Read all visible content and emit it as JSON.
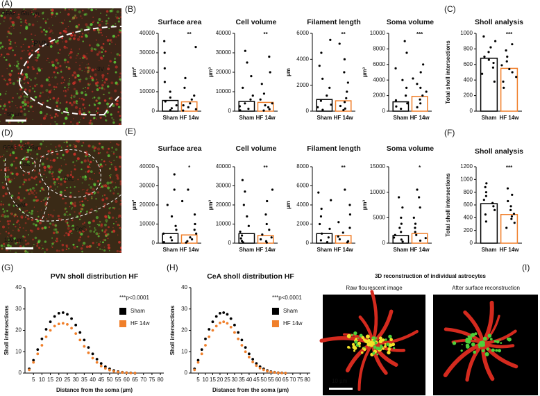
{
  "panel_labels": [
    "(A)",
    "(B)",
    "(C)",
    "(D)",
    "(E)",
    "(F)",
    "(G)",
    "(H)",
    "(I)"
  ],
  "images": {
    "A": {
      "stain_1": "GFAP",
      "stain_2": "GluSyn",
      "region": "PVN",
      "ventricle": "3V",
      "scale": "50 µm"
    },
    "D": {
      "stain_1": "GFAP",
      "stain_2": "GluSyn",
      "regions": [
        "cst",
        "CeL",
        "CeM",
        "CeC"
      ],
      "scale": "100 µm"
    },
    "I": {
      "title": "3D reconstruction of individual astrocytes",
      "left": "Raw flourescent image",
      "right": "After surface reconstruction",
      "scale": "10 µm"
    }
  },
  "chart_data": [
    {
      "type": "bar",
      "title": "Surface area",
      "y_label": "µm²",
      "annotation": "**",
      "categories": [
        "Sham",
        "HF 14w"
      ],
      "colors": [
        "#000000",
        "#f07f2a"
      ],
      "values": [
        5500,
        4800
      ],
      "points": [
        [
          36000,
          30000,
          22000,
          15000,
          10000,
          7000,
          5000,
          3000,
          1500,
          500
        ],
        [
          33000,
          17000,
          12000,
          8000,
          6000,
          4000,
          3000,
          2000,
          1000,
          300
        ]
      ],
      "ylim": [
        0,
        40000
      ],
      "yticks": [
        0,
        10000,
        20000,
        30000,
        40000
      ]
    },
    {
      "type": "bar",
      "title": "Cell volume",
      "y_label": "µm³",
      "annotation": "**",
      "categories": [
        "Sham",
        "HF 14w"
      ],
      "colors": [
        "#000000",
        "#f07f2a"
      ],
      "values": [
        5000,
        4500
      ],
      "points": [
        [
          31000,
          25000,
          18000,
          12000,
          8000,
          6000,
          4000,
          2500,
          1200,
          400
        ],
        [
          28000,
          20000,
          14000,
          9000,
          6000,
          4000,
          3000,
          2000,
          1000,
          300
        ]
      ],
      "ylim": [
        0,
        40000
      ],
      "yticks": [
        0,
        10000,
        20000,
        30000,
        40000
      ]
    },
    {
      "type": "bar",
      "title": "Filament length",
      "y_label": "µm",
      "annotation": "**",
      "categories": [
        "Sham",
        "HF 14w"
      ],
      "colors": [
        "#000000",
        "#f07f2a"
      ],
      "values": [
        900,
        800
      ],
      "points": [
        [
          5500,
          4500,
          3500,
          2500,
          1800,
          1200,
          800,
          500,
          300,
          100
        ],
        [
          5200,
          4000,
          3000,
          2200,
          1500,
          1000,
          700,
          400,
          200,
          80
        ]
      ],
      "ylim": [
        0,
        6000
      ],
      "yticks": [
        0,
        2000,
        4000,
        6000
      ]
    },
    {
      "type": "bar",
      "title": "Soma volume",
      "y_label": "µm³",
      "annotation": "***",
      "categories": [
        "Sham",
        "HF 14w"
      ],
      "colors": [
        "#000000",
        "#f07f2a"
      ],
      "values": [
        1200,
        1900
      ],
      "points": [
        [
          9000,
          7500,
          5500,
          4000,
          3000,
          2000,
          1400,
          1000,
          600,
          300
        ],
        [
          6000,
          5000,
          4200,
          3500,
          3000,
          2500,
          2000,
          1500,
          1000,
          500
        ]
      ],
      "ylim": [
        0,
        10000
      ],
      "yticks": [
        0,
        2000,
        4000,
        6000,
        8000,
        10000
      ]
    },
    {
      "type": "bar",
      "title": "Sholl analysis",
      "y_label": "Total sholl intersections",
      "annotation": "***",
      "categories": [
        "Sham",
        "HF 14w"
      ],
      "colors": [
        "#000000",
        "#f07f2a"
      ],
      "values": [
        680,
        550
      ],
      "points": [
        [
          960,
          900,
          820,
          760,
          700,
          660,
          620,
          560,
          480,
          380
        ],
        [
          860,
          780,
          700,
          640,
          590,
          540,
          500,
          440,
          380,
          300
        ]
      ],
      "ylim": [
        0,
        1000
      ],
      "yticks": [
        0,
        200,
        400,
        600,
        800,
        1000
      ]
    },
    {
      "type": "bar",
      "title": "Surface area",
      "y_label": "µm²",
      "annotation": "*",
      "categories": [
        "Sham",
        "HF 14w"
      ],
      "colors": [
        "#000000",
        "#f07f2a"
      ],
      "values": [
        5000,
        4300
      ],
      "points": [
        [
          36000,
          28000,
          20000,
          14000,
          9000,
          7000,
          5000,
          3000,
          1500,
          500
        ],
        [
          28000,
          22000,
          15000,
          10000,
          7000,
          5000,
          3000,
          2000,
          1000,
          300
        ]
      ],
      "ylim": [
        0,
        40000
      ],
      "yticks": [
        0,
        10000,
        20000,
        30000,
        40000
      ]
    },
    {
      "type": "bar",
      "title": "Cell volume",
      "y_label": "µm³",
      "annotation": "**",
      "categories": [
        "Sham",
        "HF 14w"
      ],
      "colors": [
        "#000000",
        "#f07f2a"
      ],
      "values": [
        5000,
        4000
      ],
      "points": [
        [
          33000,
          27000,
          20000,
          14000,
          9000,
          6000,
          4000,
          2500,
          1200,
          400
        ],
        [
          28000,
          22000,
          15000,
          10000,
          7000,
          4500,
          3000,
          2000,
          1000,
          300
        ]
      ],
      "ylim": [
        0,
        40000
      ],
      "yticks": [
        0,
        10000,
        20000,
        30000,
        40000
      ]
    },
    {
      "type": "bar",
      "title": "Filament length",
      "y_label": "µm",
      "annotation": "**",
      "categories": [
        "Sham",
        "HF 14w"
      ],
      "colors": [
        "#000000",
        "#f07f2a"
      ],
      "values": [
        1000,
        800
      ],
      "points": [
        [
          5300,
          4500,
          3600,
          2800,
          2000,
          1500,
          1000,
          600,
          300,
          100
        ],
        [
          5600,
          4000,
          3000,
          2200,
          1600,
          1100,
          700,
          400,
          200,
          80
        ]
      ],
      "ylim": [
        0,
        8000
      ],
      "yticks": [
        0,
        2000,
        4000,
        6000,
        8000
      ]
    },
    {
      "type": "bar",
      "title": "Soma volume",
      "y_label": "µm³",
      "annotation": "*",
      "categories": [
        "Sham",
        "HF 14w"
      ],
      "colors": [
        "#000000",
        "#f07f2a"
      ],
      "values": [
        1500,
        1900
      ],
      "points": [
        [
          9000,
          7000,
          5000,
          3800,
          3000,
          2200,
          1600,
          1100,
          700,
          300
        ],
        [
          10500,
          9000,
          7000,
          5000,
          3800,
          3000,
          2200,
          1600,
          1000,
          500
        ]
      ],
      "ylim": [
        0,
        15000
      ],
      "yticks": [
        0,
        5000,
        10000,
        15000
      ]
    },
    {
      "type": "bar",
      "title": "Sholl analysis",
      "y_label": "Total sholl intersections",
      "annotation": "***",
      "categories": [
        "Sham",
        "HF 14w"
      ],
      "colors": [
        "#000000",
        "#f07f2a"
      ],
      "values": [
        620,
        450
      ],
      "points": [
        [
          940,
          880,
          800,
          740,
          680,
          630,
          580,
          520,
          450,
          340
        ],
        [
          860,
          760,
          660,
          580,
          520,
          460,
          420,
          380,
          320,
          240
        ]
      ],
      "ylim": [
        0,
        1200
      ],
      "yticks": [
        0,
        200,
        400,
        600,
        800,
        1000,
        1200
      ]
    },
    {
      "type": "scatter",
      "title": "PVN sholl distribution HF",
      "x_label": "Distance from the soma (µm)",
      "y_label": "Sholl intersections",
      "annotation": "***p<0.0001",
      "x": [
        2.5,
        5,
        7.5,
        10,
        12.5,
        15,
        17.5,
        20,
        22.5,
        25,
        27.5,
        30,
        32.5,
        35,
        37.5,
        40,
        42.5,
        45,
        47.5,
        50,
        52.5,
        55,
        57.5,
        60,
        62.5,
        65
      ],
      "series": [
        {
          "name": "Sham",
          "color": "#000000",
          "values": [
            2,
            6,
            11,
            16,
            20.5,
            24,
            26.5,
            28,
            28.3,
            27.5,
            25.5,
            22.5,
            19,
            15.5,
            12,
            9,
            6.5,
            4.5,
            3,
            2,
            1.2,
            0.7,
            0.4,
            0.2,
            0.1,
            0
          ]
        },
        {
          "name": "HF 14w",
          "color": "#f07f2a",
          "values": [
            1.5,
            5,
            9,
            13,
            17,
            20,
            22,
            23,
            23.3,
            22.8,
            21,
            18.5,
            15.5,
            12.5,
            9.5,
            7,
            5,
            3.3,
            2.2,
            1.4,
            0.8,
            0.5,
            0.3,
            0.15,
            0.05,
            0
          ]
        }
      ],
      "xlim": [
        0,
        82
      ],
      "ylim": [
        0,
        40
      ],
      "xticks": [
        5,
        10,
        15,
        20,
        25,
        30,
        35,
        40,
        45,
        50,
        55,
        60,
        65,
        70,
        75,
        80
      ],
      "yticks": [
        0,
        10,
        20,
        30,
        40
      ]
    },
    {
      "type": "scatter",
      "title": "CeA sholl distribution HF",
      "x_label": "Distance from the soma (µm)",
      "y_label": "Sholl intersections",
      "annotation": "***p<0.0001",
      "x": [
        2.5,
        5,
        7.5,
        10,
        12.5,
        15,
        17.5,
        20,
        22.5,
        25,
        27.5,
        30,
        32.5,
        35,
        37.5,
        40,
        42.5,
        45,
        47.5,
        50,
        52.5,
        55,
        57.5,
        60,
        62.5,
        65
      ],
      "series": [
        {
          "name": "Sham",
          "color": "#000000",
          "values": [
            2,
            6,
            11,
            16,
            20.5,
            24,
            26.5,
            28,
            28.3,
            27.5,
            25.5,
            22.5,
            19,
            15.5,
            12,
            9,
            6.5,
            4.5,
            3,
            2,
            1.2,
            0.7,
            0.4,
            0.2,
            0.1,
            0
          ]
        },
        {
          "name": "HF 14w",
          "color": "#f07f2a",
          "values": [
            1.5,
            5,
            9,
            13,
            17,
            20,
            22,
            23.5,
            24,
            23.3,
            21.5,
            19,
            16,
            13,
            10,
            7.5,
            5.2,
            3.5,
            2.3,
            1.5,
            0.9,
            0.5,
            0.3,
            0.15,
            0.05,
            0
          ]
        }
      ],
      "xlim": [
        0,
        82
      ],
      "ylim": [
        0,
        40
      ],
      "xticks": [
        5,
        10,
        15,
        20,
        25,
        30,
        35,
        40,
        45,
        50,
        55,
        60,
        65,
        70,
        75,
        80
      ],
      "yticks": [
        0,
        10,
        20,
        30,
        40
      ]
    }
  ]
}
